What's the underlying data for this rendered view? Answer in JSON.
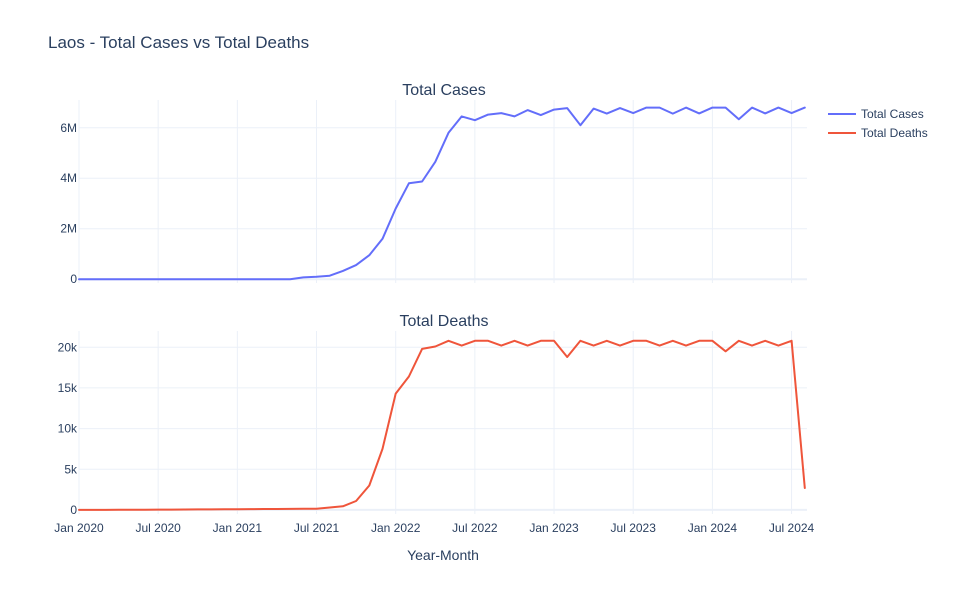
{
  "title": "Laos - Total Cases vs Total Deaths",
  "x_axis_title": "Year-Month",
  "x_tick_labels": [
    "Jan 2020",
    "Jul 2020",
    "Jan 2021",
    "Jul 2021",
    "Jan 2022",
    "Jul 2022",
    "Jan 2023",
    "Jul 2023",
    "Jan 2024",
    "Jul 2024"
  ],
  "legend": [
    {
      "name": "Total Cases",
      "color": "#636efa"
    },
    {
      "name": "Total Deaths",
      "color": "#ef553b"
    }
  ],
  "chart_data": [
    {
      "type": "line",
      "title": "Total Cases",
      "xlabel": "",
      "ylabel": "",
      "grid": true,
      "legend_position": "top-right",
      "y_tick_labels": [
        "0",
        "2M",
        "4M",
        "6M"
      ],
      "y_ticks": [
        0,
        2000000,
        4000000,
        6000000
      ],
      "xlim": [
        "2020-01",
        "2024-08"
      ],
      "ylim": [
        -150000,
        7100000
      ],
      "x": [
        "2020-01",
        "2020-02",
        "2020-03",
        "2020-04",
        "2020-05",
        "2020-06",
        "2020-07",
        "2020-08",
        "2020-09",
        "2020-10",
        "2020-11",
        "2020-12",
        "2021-01",
        "2021-02",
        "2021-03",
        "2021-04",
        "2021-05",
        "2021-06",
        "2021-07",
        "2021-08",
        "2021-09",
        "2021-10",
        "2021-11",
        "2021-12",
        "2022-01",
        "2022-02",
        "2022-03",
        "2022-04",
        "2022-05",
        "2022-06",
        "2022-07",
        "2022-08",
        "2022-09",
        "2022-10",
        "2022-11",
        "2022-12",
        "2023-01",
        "2023-02",
        "2023-03",
        "2023-04",
        "2023-05",
        "2023-06",
        "2023-07",
        "2023-08",
        "2023-09",
        "2023-10",
        "2023-11",
        "2023-12",
        "2024-01",
        "2024-02",
        "2024-03",
        "2024-04",
        "2024-05",
        "2024-06",
        "2024-07",
        "2024-08"
      ],
      "series": [
        {
          "name": "Total Cases",
          "color": "#636efa",
          "values": [
            19,
            19,
            19,
            19,
            19,
            19,
            19,
            19,
            19,
            19,
            19,
            19,
            41,
            41,
            41,
            41,
            45,
            70000,
            100000,
            140000,
            330000,
            560000,
            950000,
            1600000,
            2800000,
            3800000,
            3870000,
            4650000,
            5800000,
            6450000,
            6300000,
            6520000,
            6580000,
            6450000,
            6700000,
            6500000,
            6720000,
            6780000,
            6100000,
            6760000,
            6560000,
            6780000,
            6580000,
            6800000,
            6800000,
            6560000,
            6800000,
            6570000,
            6800000,
            6800000,
            6340000,
            6800000,
            6570000,
            6800000,
            6580000,
            6800000
          ]
        }
      ]
    },
    {
      "type": "line",
      "title": "Total Deaths",
      "xlabel": "Year-Month",
      "ylabel": "",
      "grid": true,
      "legend_position": "top-right",
      "y_tick_labels": [
        "0",
        "5k",
        "10k",
        "15k",
        "20k"
      ],
      "y_ticks": [
        0,
        5000,
        10000,
        15000,
        20000
      ],
      "xlim": [
        "2020-01",
        "2024-08"
      ],
      "ylim": [
        -500,
        22000
      ],
      "x": [
        "2020-01",
        "2020-02",
        "2020-03",
        "2020-04",
        "2020-05",
        "2020-06",
        "2020-07",
        "2020-08",
        "2020-09",
        "2020-10",
        "2020-11",
        "2020-12",
        "2021-01",
        "2021-02",
        "2021-03",
        "2021-04",
        "2021-05",
        "2021-06",
        "2021-07",
        "2021-08",
        "2021-09",
        "2021-10",
        "2021-11",
        "2021-12",
        "2022-01",
        "2022-02",
        "2022-03",
        "2022-04",
        "2022-05",
        "2022-06",
        "2022-07",
        "2022-08",
        "2022-09",
        "2022-10",
        "2022-11",
        "2022-12",
        "2023-01",
        "2023-02",
        "2023-03",
        "2023-04",
        "2023-05",
        "2023-06",
        "2023-07",
        "2023-08",
        "2023-09",
        "2023-10",
        "2023-11",
        "2023-12",
        "2024-01",
        "2024-02",
        "2024-03",
        "2024-04",
        "2024-05",
        "2024-06",
        "2024-07",
        "2024-08"
      ],
      "series": [
        {
          "name": "Total Deaths",
          "color": "#ef553b",
          "values": [
            0,
            5,
            10,
            15,
            20,
            25,
            35,
            40,
            50,
            60,
            70,
            80,
            90,
            100,
            110,
            120,
            130,
            140,
            150,
            300,
            450,
            1100,
            3000,
            7500,
            14300,
            16400,
            19800,
            20100,
            20800,
            20200,
            20800,
            20800,
            20200,
            20800,
            20200,
            20800,
            20800,
            18800,
            20800,
            20200,
            20800,
            20200,
            20800,
            20800,
            20200,
            20800,
            20200,
            20800,
            20800,
            19500,
            20800,
            20200,
            20800,
            20200,
            20800,
            2700
          ]
        }
      ]
    }
  ]
}
